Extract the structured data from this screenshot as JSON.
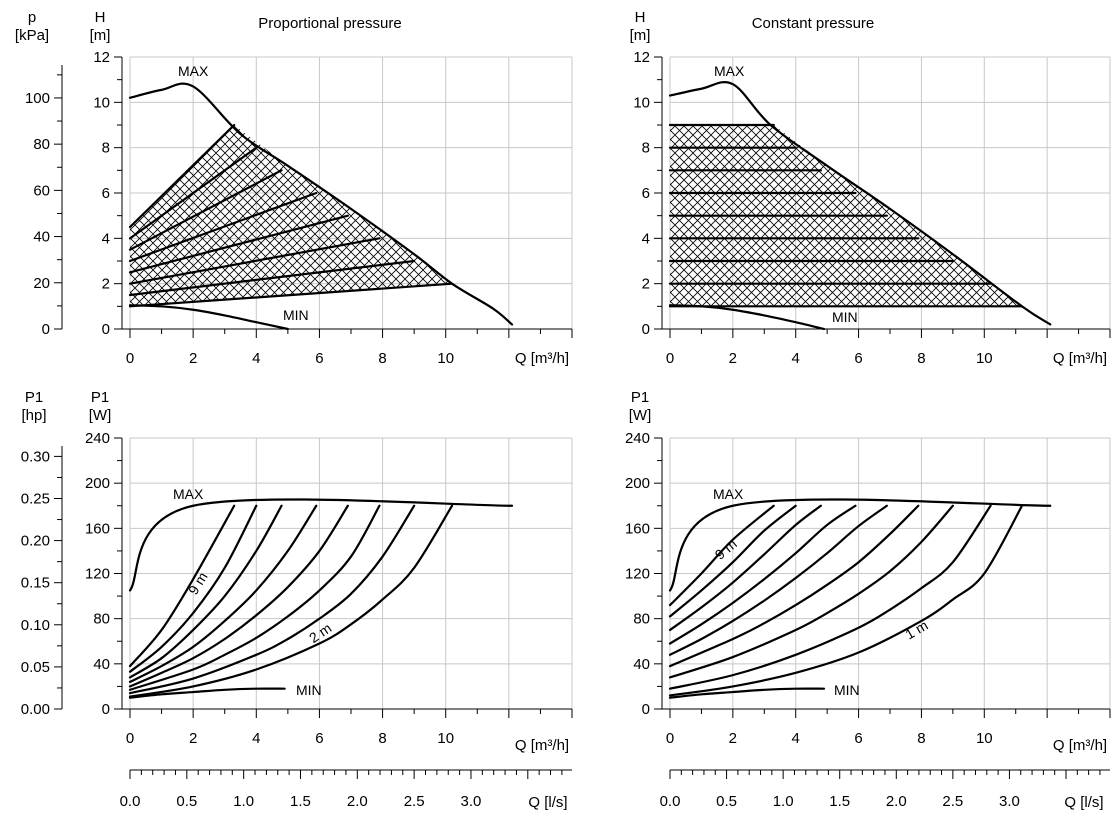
{
  "chart_data": [
    {
      "id": "pp_h",
      "type": "line",
      "title": "Proportional pressure",
      "ylabel": "H",
      "yunit": "[m]",
      "ylabel2": "p",
      "yunit2": "[kPa]",
      "xlabel": "Q [m³/h]",
      "xlim": [
        0,
        14
      ],
      "ylim": [
        0,
        12
      ],
      "xticks": [
        "0",
        "2",
        "4",
        "6",
        "8",
        "10"
      ],
      "yticks": [
        "0",
        "2",
        "4",
        "6",
        "8",
        "10",
        "12"
      ],
      "y2ticks": [
        "0",
        "20",
        "40",
        "60",
        "80",
        "100"
      ],
      "annotations": [
        "MAX",
        "MIN"
      ],
      "series": [
        {
          "role": "max",
          "x": [
            0,
            1,
            2,
            3.5,
            5,
            7,
            9,
            10.2,
            11.5,
            12.1
          ],
          "y": [
            10.2,
            10.55,
            10.7,
            8.6,
            7.2,
            5.3,
            3.3,
            2.0,
            0.9,
            0.2
          ]
        },
        {
          "role": "min",
          "x": [
            0,
            1,
            2,
            3,
            4,
            5
          ],
          "y": [
            1.05,
            1.0,
            0.85,
            0.6,
            0.3,
            0
          ]
        },
        {
          "role": "band",
          "x": [
            0,
            10.2
          ],
          "y": [
            1.0,
            2.0
          ]
        },
        {
          "role": "band",
          "x": [
            0,
            9.0
          ],
          "y": [
            1.5,
            3.0
          ]
        },
        {
          "role": "band",
          "x": [
            0,
            7.9
          ],
          "y": [
            2.0,
            4.0
          ]
        },
        {
          "role": "band",
          "x": [
            0,
            6.9
          ],
          "y": [
            2.5,
            5.0
          ]
        },
        {
          "role": "band",
          "x": [
            0,
            5.9
          ],
          "y": [
            3.0,
            6.0
          ]
        },
        {
          "role": "band",
          "x": [
            0,
            4.8
          ],
          "y": [
            3.5,
            7.0
          ]
        },
        {
          "role": "band",
          "x": [
            0,
            4.0
          ],
          "y": [
            4.0,
            8.0
          ]
        },
        {
          "role": "band",
          "x": [
            0,
            3.3
          ],
          "y": [
            4.5,
            9.0
          ]
        }
      ]
    },
    {
      "id": "cp_h",
      "type": "line",
      "title": "Constant pressure",
      "ylabel": "H",
      "yunit": "[m]",
      "xlabel": "Q [m³/h]",
      "xlim": [
        0,
        14
      ],
      "ylim": [
        0,
        12
      ],
      "xticks": [
        "0",
        "2",
        "4",
        "6",
        "8",
        "10"
      ],
      "yticks": [
        "0",
        "2",
        "4",
        "6",
        "8",
        "10",
        "12"
      ],
      "annotations": [
        "MAX",
        "MIN"
      ],
      "series": [
        {
          "role": "max",
          "x": [
            0,
            1,
            2,
            3.2,
            5,
            7,
            9,
            11.2,
            12.1
          ],
          "y": [
            10.3,
            10.6,
            10.8,
            9.0,
            7.2,
            5.3,
            3.3,
            1.0,
            0.2
          ]
        },
        {
          "role": "min",
          "x": [
            0,
            1,
            2,
            3,
            4,
            4.9
          ],
          "y": [
            1.05,
            1.0,
            0.85,
            0.6,
            0.3,
            0
          ]
        },
        {
          "role": "level",
          "x": [
            0,
            11.2
          ],
          "y": [
            1,
            1
          ]
        },
        {
          "role": "level",
          "x": [
            0,
            10.2
          ],
          "y": [
            2,
            2
          ]
        },
        {
          "role": "level",
          "x": [
            0,
            9.0
          ],
          "y": [
            3,
            3
          ]
        },
        {
          "role": "level",
          "x": [
            0,
            7.9
          ],
          "y": [
            4,
            4
          ]
        },
        {
          "role": "level",
          "x": [
            0,
            6.9
          ],
          "y": [
            5,
            5
          ]
        },
        {
          "role": "level",
          "x": [
            0,
            5.9
          ],
          "y": [
            6,
            6
          ]
        },
        {
          "role": "level",
          "x": [
            0,
            4.8
          ],
          "y": [
            7,
            7
          ]
        },
        {
          "role": "level",
          "x": [
            0,
            4.0
          ],
          "y": [
            8,
            8
          ]
        },
        {
          "role": "level",
          "x": [
            0,
            3.3
          ],
          "y": [
            9,
            9
          ]
        }
      ]
    },
    {
      "id": "pp_p",
      "type": "line",
      "ylabel": "P1",
      "yunit": "[W]",
      "ylabel2": "P1",
      "yunit2": "[hp]",
      "xlabel": "Q [m³/h]",
      "xlabel2": "Q [l/s]",
      "xlim": [
        0,
        14
      ],
      "ylim": [
        0,
        240
      ],
      "xticks": [
        "0",
        "2",
        "4",
        "6",
        "8",
        "10"
      ],
      "x2ticks": [
        "0.0",
        "0.5",
        "1.0",
        "1.5",
        "2.0",
        "2.5",
        "3.0"
      ],
      "yticks": [
        "0",
        "40",
        "80",
        "120",
        "160",
        "200",
        "240"
      ],
      "y2ticks": [
        "0.00",
        "0.05",
        "0.10",
        "0.15",
        "0.20",
        "0.25",
        "0.30"
      ],
      "annotations": [
        "MAX",
        "MIN",
        "9 m",
        "2 m"
      ],
      "series": [
        {
          "role": "max",
          "x": [
            0,
            2,
            12.1
          ],
          "y": [
            105,
            180,
            180
          ]
        },
        {
          "role": "min",
          "x": [
            0,
            1,
            2,
            3,
            4,
            4.9
          ],
          "y": [
            10,
            13,
            15,
            17,
            18,
            18
          ]
        },
        {
          "role": "step",
          "x": [
            0,
            1,
            2,
            3.3
          ],
          "y": [
            38,
            70,
            115,
            180
          ]
        },
        {
          "role": "step",
          "x": [
            0,
            1,
            2,
            3,
            4.0
          ],
          "y": [
            33,
            55,
            85,
            125,
            180
          ]
        },
        {
          "role": "step",
          "x": [
            0,
            1,
            2,
            3,
            4,
            4.8
          ],
          "y": [
            28,
            45,
            70,
            100,
            140,
            180
          ]
        },
        {
          "role": "step",
          "x": [
            0,
            1,
            2,
            3,
            4,
            5,
            5.9
          ],
          "y": [
            24,
            38,
            55,
            78,
            105,
            140,
            180
          ]
        },
        {
          "role": "step",
          "x": [
            0,
            1,
            2,
            3,
            4,
            5,
            6,
            6.9
          ],
          "y": [
            20,
            32,
            45,
            62,
            83,
            108,
            140,
            180
          ]
        },
        {
          "role": "step",
          "x": [
            0,
            2,
            3,
            4,
            5,
            6,
            7,
            7.9
          ],
          "y": [
            17,
            35,
            48,
            63,
            82,
            105,
            135,
            180
          ]
        },
        {
          "role": "step",
          "x": [
            0,
            2,
            4,
            5,
            6,
            7,
            8,
            9.0
          ],
          "y": [
            14,
            27,
            48,
            62,
            80,
            102,
            135,
            180
          ]
        },
        {
          "role": "step",
          "x": [
            0,
            2,
            4,
            6,
            7,
            8,
            9,
            10.2
          ],
          "y": [
            11,
            20,
            35,
            58,
            75,
            97,
            125,
            180
          ]
        }
      ]
    },
    {
      "id": "cp_p",
      "type": "line",
      "ylabel": "P1",
      "yunit": "[W]",
      "xlabel": "Q [m³/h]",
      "xlabel2": "Q [l/s]",
      "xlim": [
        0,
        14
      ],
      "ylim": [
        0,
        240
      ],
      "xticks": [
        "0",
        "2",
        "4",
        "6",
        "8",
        "10"
      ],
      "x2ticks": [
        "0.0",
        "0.5",
        "1.0",
        "1.5",
        "2.0",
        "2.5",
        "3.0"
      ],
      "yticks": [
        "0",
        "40",
        "80",
        "120",
        "160",
        "200",
        "240"
      ],
      "annotations": [
        "MAX",
        "MIN",
        "9 m",
        "1 m"
      ],
      "series": [
        {
          "role": "max",
          "x": [
            0,
            2,
            12.1
          ],
          "y": [
            105,
            180,
            180
          ]
        },
        {
          "role": "min",
          "x": [
            0,
            1,
            2,
            3,
            4,
            4.9
          ],
          "y": [
            10,
            13,
            15,
            17,
            18,
            18
          ]
        },
        {
          "role": "step",
          "x": [
            0,
            1,
            2,
            3.3
          ],
          "y": [
            92,
            120,
            150,
            180
          ]
        },
        {
          "role": "step",
          "x": [
            0,
            1,
            2,
            3,
            4.0
          ],
          "y": [
            82,
            105,
            130,
            158,
            180
          ]
        },
        {
          "role": "step",
          "x": [
            0,
            1,
            2,
            3,
            4,
            4.8
          ],
          "y": [
            70,
            90,
            112,
            137,
            163,
            180
          ]
        },
        {
          "role": "step",
          "x": [
            0,
            1,
            2,
            3,
            4,
            5,
            5.9
          ],
          "y": [
            58,
            75,
            94,
            115,
            138,
            163,
            180
          ]
        },
        {
          "role": "step",
          "x": [
            0,
            1,
            2,
            3,
            4,
            5,
            6,
            6.9
          ],
          "y": [
            48,
            62,
            78,
            96,
            116,
            138,
            162,
            180
          ]
        },
        {
          "role": "step",
          "x": [
            0,
            2,
            3,
            4,
            5,
            6,
            7,
            7.9
          ],
          "y": [
            38,
            62,
            76,
            92,
            110,
            130,
            155,
            180
          ]
        },
        {
          "role": "step",
          "x": [
            0,
            2,
            4,
            5,
            6,
            7,
            8,
            9.0
          ],
          "y": [
            28,
            46,
            70,
            85,
            102,
            122,
            148,
            180
          ]
        },
        {
          "role": "step",
          "x": [
            0,
            2,
            4,
            6,
            7,
            8,
            9,
            10.2
          ],
          "y": [
            18,
            30,
            48,
            72,
            88,
            107,
            130,
            180
          ]
        },
        {
          "role": "step",
          "x": [
            0,
            2,
            4,
            6,
            8,
            9,
            10,
            11.2
          ],
          "y": [
            12,
            20,
            32,
            50,
            78,
            97,
            120,
            180
          ]
        }
      ]
    }
  ]
}
